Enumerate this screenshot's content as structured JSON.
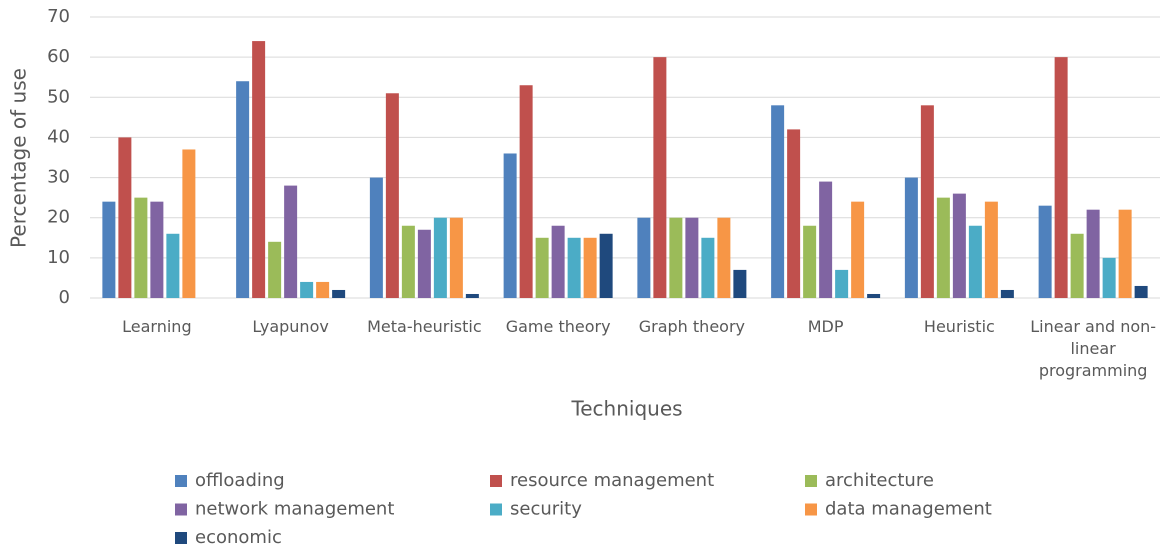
{
  "chart_data": {
    "type": "bar",
    "x_label": "Techniques",
    "y_label": "Percentage of use",
    "categories": [
      "Learning",
      "Lyapunov",
      "Meta-heuristic",
      "Game theory",
      "Graph theory",
      "MDP",
      "Heuristic",
      "Linear and non-linear programming"
    ],
    "series": [
      {
        "name": "offloading",
        "color": "#4f81bd",
        "values": [
          24,
          54,
          30,
          36,
          20,
          48,
          30,
          23
        ]
      },
      {
        "name": "resource management",
        "color": "#c0504d",
        "values": [
          40,
          64,
          51,
          53,
          60,
          42,
          48,
          60
        ]
      },
      {
        "name": "architecture",
        "color": "#9bbb59",
        "values": [
          25,
          14,
          18,
          15,
          20,
          18,
          25,
          16
        ]
      },
      {
        "name": "network management",
        "color": "#8064a2",
        "values": [
          24,
          28,
          17,
          18,
          20,
          29,
          26,
          22
        ]
      },
      {
        "name": "security",
        "color": "#4bacc6",
        "values": [
          16,
          4,
          20,
          15,
          15,
          7,
          18,
          10
        ]
      },
      {
        "name": "data management",
        "color": "#f79646",
        "values": [
          37,
          4,
          20,
          15,
          20,
          24,
          24,
          22
        ]
      },
      {
        "name": "economic",
        "color": "#1f497d",
        "values": [
          0,
          2,
          1,
          16,
          7,
          1,
          2,
          3
        ]
      }
    ],
    "ylim": [
      0,
      70
    ],
    "yticks": [
      0,
      10,
      20,
      30,
      40,
      50,
      60,
      70
    ],
    "grid": true,
    "legend": "bottom"
  }
}
